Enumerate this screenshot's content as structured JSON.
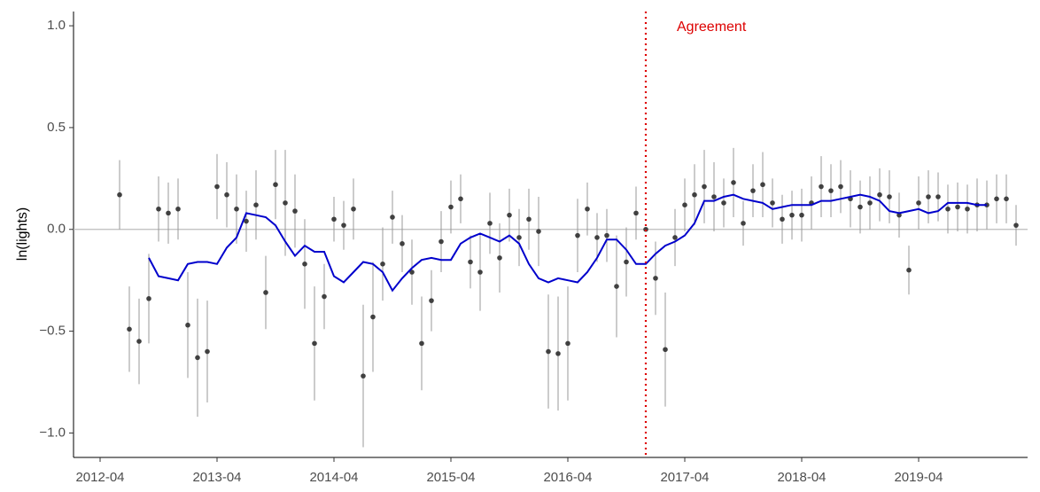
{
  "chart_data": {
    "type": "scatter",
    "y_label": "ln(lights)",
    "x": [
      "2012-06",
      "2012-07",
      "2012-08",
      "2012-09",
      "2012-10",
      "2012-11",
      "2012-12",
      "2013-01",
      "2013-02",
      "2013-03",
      "2013-04",
      "2013-05",
      "2013-06",
      "2013-07",
      "2013-08",
      "2013-09",
      "2013-10",
      "2013-11",
      "2013-12",
      "2014-01",
      "2014-02",
      "2014-03",
      "2014-04",
      "2014-05",
      "2014-06",
      "2014-07",
      "2014-08",
      "2014-09",
      "2014-10",
      "2014-11",
      "2014-12",
      "2015-01",
      "2015-02",
      "2015-03",
      "2015-04",
      "2015-05",
      "2015-06",
      "2015-07",
      "2015-08",
      "2015-09",
      "2015-10",
      "2015-11",
      "2015-12",
      "2016-01",
      "2016-02",
      "2016-03",
      "2016-04",
      "2016-05",
      "2016-06",
      "2016-07",
      "2016-08",
      "2016-09",
      "2016-10",
      "2016-11",
      "2016-12",
      "2017-01",
      "2017-02",
      "2017-03",
      "2017-04",
      "2017-05",
      "2017-06",
      "2017-07",
      "2017-08",
      "2017-09",
      "2017-10",
      "2017-11",
      "2017-12",
      "2018-01",
      "2018-02",
      "2018-03",
      "2018-04",
      "2018-05",
      "2018-06",
      "2018-07",
      "2018-08",
      "2018-09",
      "2018-10",
      "2018-11",
      "2018-12",
      "2019-01",
      "2019-02",
      "2019-03",
      "2019-04",
      "2019-05",
      "2019-06",
      "2019-07",
      "2019-08",
      "2019-09",
      "2019-10",
      "2019-11",
      "2019-12",
      "2020-01",
      "2020-02"
    ],
    "series": [
      {
        "type": "scatter",
        "color": "#404040",
        "error_color": "#999999",
        "values": [
          0.17,
          -0.49,
          -0.55,
          -0.34,
          0.1,
          0.08,
          0.1,
          -0.47,
          -0.63,
          -0.6,
          0.21,
          0.17,
          0.1,
          0.04,
          0.12,
          -0.31,
          0.22,
          0.13,
          0.09,
          -0.17,
          -0.56,
          -0.33,
          0.05,
          0.02,
          0.1,
          -0.72,
          -0.43,
          -0.17,
          0.06,
          -0.07,
          -0.21,
          -0.56,
          -0.35,
          -0.06,
          0.11,
          0.15,
          -0.16,
          -0.21,
          0.03,
          -0.14,
          0.07,
          -0.04,
          0.05,
          -0.01,
          -0.6,
          -0.61,
          -0.56,
          -0.03,
          0.1,
          -0.04,
          -0.03,
          -0.28,
          -0.16,
          0.08,
          0.0,
          -0.24,
          -0.59,
          -0.04,
          0.12,
          0.17,
          0.21,
          0.16,
          0.13,
          0.23,
          0.03,
          0.19,
          0.22,
          0.13,
          0.05,
          0.07,
          0.07,
          0.13,
          0.21,
          0.19,
          0.21,
          0.15,
          0.11,
          0.13,
          0.17,
          0.16,
          0.07,
          -0.2,
          0.13,
          0.16,
          0.16,
          0.1,
          0.11,
          0.1,
          0.12,
          0.12,
          0.15,
          0.15,
          0.02
        ],
        "errors": [
          0.17,
          0.21,
          0.21,
          0.22,
          0.16,
          0.15,
          0.15,
          0.26,
          0.29,
          0.25,
          0.16,
          0.16,
          0.17,
          0.15,
          0.17,
          0.18,
          0.17,
          0.26,
          0.18,
          0.22,
          0.28,
          0.16,
          0.11,
          0.12,
          0.15,
          0.35,
          0.27,
          0.18,
          0.13,
          0.14,
          0.16,
          0.23,
          0.15,
          0.15,
          0.13,
          0.12,
          0.13,
          0.19,
          0.15,
          0.17,
          0.13,
          0.14,
          0.15,
          0.17,
          0.28,
          0.28,
          0.28,
          0.18,
          0.13,
          0.12,
          0.13,
          0.25,
          0.17,
          0.13,
          0.01,
          0.18,
          0.28,
          0.14,
          0.13,
          0.15,
          0.18,
          0.17,
          0.12,
          0.17,
          0.11,
          0.13,
          0.16,
          0.12,
          0.12,
          0.12,
          0.13,
          0.13,
          0.15,
          0.13,
          0.13,
          0.14,
          0.13,
          0.13,
          0.13,
          0.13,
          0.11,
          0.12,
          0.13,
          0.13,
          0.12,
          0.12,
          0.12,
          0.12,
          0.13,
          0.12,
          0.12,
          0.12,
          0.1
        ]
      },
      {
        "type": "line",
        "color": "#0000cc",
        "values": [
          null,
          null,
          null,
          -0.14,
          -0.23,
          -0.24,
          -0.25,
          -0.17,
          -0.16,
          -0.16,
          -0.17,
          -0.09,
          -0.04,
          0.08,
          0.07,
          0.06,
          0.02,
          -0.06,
          -0.13,
          -0.08,
          -0.11,
          -0.11,
          -0.23,
          -0.26,
          -0.21,
          -0.16,
          -0.17,
          -0.21,
          -0.3,
          -0.24,
          -0.19,
          -0.15,
          -0.14,
          -0.15,
          -0.15,
          -0.07,
          -0.04,
          -0.02,
          -0.04,
          -0.06,
          -0.03,
          -0.07,
          -0.17,
          -0.24,
          -0.26,
          -0.24,
          -0.25,
          -0.26,
          -0.21,
          -0.14,
          -0.05,
          -0.05,
          -0.1,
          -0.17,
          -0.17,
          -0.12,
          -0.08,
          -0.06,
          -0.03,
          0.03,
          0.14,
          0.14,
          0.16,
          0.17,
          0.15,
          0.14,
          0.13,
          0.1,
          0.11,
          0.12,
          0.12,
          0.12,
          0.14,
          0.14,
          0.15,
          0.16,
          0.17,
          0.16,
          0.14,
          0.09,
          0.08,
          0.09,
          0.1,
          0.08,
          0.09,
          0.13,
          0.13,
          0.13,
          0.12,
          0.12,
          null,
          null,
          null
        ]
      }
    ],
    "reference_line": 0,
    "annotation": {
      "text": "Agreement",
      "x": "2016-12",
      "color": "#dd0000"
    },
    "xlim": [
      "2012-01",
      "2020-03"
    ],
    "xticks": [
      "2012-04",
      "2013-04",
      "2014-04",
      "2015-04",
      "2016-04",
      "2017-04",
      "2018-04",
      "2019-04"
    ],
    "ylim": [
      -1.12,
      1.07
    ],
    "yticks": [
      {
        "value": -1,
        "label": "−1.0"
      },
      {
        "value": -0.5,
        "label": "−0.5"
      },
      {
        "value": 0,
        "label": "0.0"
      },
      {
        "value": 0.5,
        "label": "0.5"
      },
      {
        "value": 1,
        "label": "1.0"
      }
    ]
  }
}
